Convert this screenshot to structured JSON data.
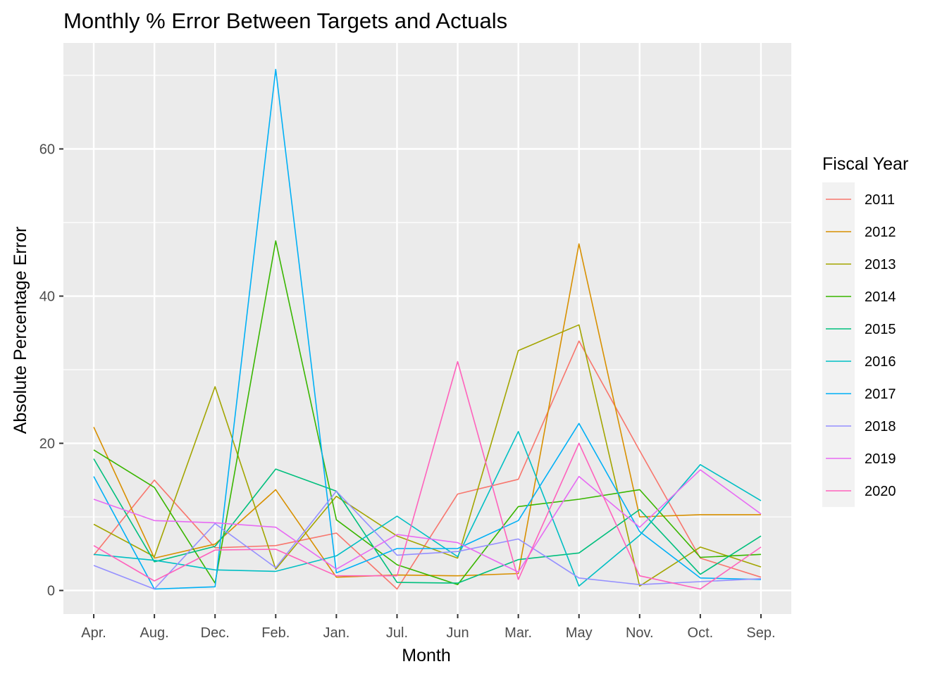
{
  "chart_data": {
    "type": "line",
    "title": "Monthly % Error Between Targets and Actuals",
    "xlabel": "Month",
    "ylabel": "Absolute Percentage Error",
    "ylim": [
      -3.2,
      74.4
    ],
    "yticks": [
      0,
      20,
      40,
      60
    ],
    "grid": true,
    "legend_title": "Fiscal Year",
    "legend_position": "right",
    "categories": [
      "Apr.",
      "Aug.",
      "Dec.",
      "Feb.",
      "Jan.",
      "Jul.",
      "Jun",
      "Mar.",
      "May",
      "Nov.",
      "Oct.",
      "Sep."
    ],
    "series": [
      {
        "name": "2011",
        "color": "#F8766D",
        "values": [
          4.8,
          15.0,
          5.8,
          6.1,
          7.8,
          0.2,
          13.1,
          15.1,
          33.9,
          19.0,
          4.4,
          1.8
        ]
      },
      {
        "name": "2012",
        "color": "#D89000",
        "values": [
          22.2,
          4.4,
          6.3,
          13.7,
          1.8,
          2.1,
          2.0,
          2.3,
          47.1,
          10.0,
          10.3,
          10.3
        ]
      },
      {
        "name": "2013",
        "color": "#A3A500",
        "values": [
          9.0,
          4.6,
          27.7,
          2.9,
          12.8,
          7.4,
          4.4,
          32.6,
          36.1,
          0.6,
          5.9,
          3.2
        ]
      },
      {
        "name": "2014",
        "color": "#39B600",
        "values": [
          19.1,
          14.0,
          1.0,
          47.5,
          9.6,
          3.5,
          0.8,
          11.4,
          12.4,
          13.7,
          4.5,
          4.9
        ]
      },
      {
        "name": "2015",
        "color": "#00BF7D",
        "values": [
          17.9,
          3.9,
          6.0,
          16.5,
          13.5,
          1.1,
          1.0,
          4.2,
          5.1,
          11.0,
          2.2,
          7.4
        ]
      },
      {
        "name": "2016",
        "color": "#00BFC4",
        "values": [
          4.9,
          4.1,
          2.8,
          2.6,
          4.7,
          10.1,
          4.6,
          21.6,
          0.6,
          7.5,
          17.1,
          12.2
        ]
      },
      {
        "name": "2017",
        "color": "#00B0F6",
        "values": [
          15.5,
          0.2,
          0.5,
          70.8,
          2.4,
          5.7,
          5.7,
          9.5,
          22.7,
          8.0,
          1.7,
          1.5
        ]
      },
      {
        "name": "2018",
        "color": "#9590FF",
        "values": [
          3.4,
          0.2,
          9.1,
          3.1,
          13.5,
          4.8,
          5.3,
          7.0,
          1.7,
          0.8,
          1.2,
          1.6
        ]
      },
      {
        "name": "2019",
        "color": "#E76BF3",
        "values": [
          12.4,
          9.5,
          9.2,
          8.6,
          2.9,
          7.6,
          6.5,
          2.5,
          15.5,
          8.6,
          16.4,
          10.4
        ]
      },
      {
        "name": "2020",
        "color": "#FF62BC",
        "values": [
          6.1,
          1.3,
          5.5,
          5.6,
          2.0,
          2.0,
          31.1,
          1.5,
          20.0,
          2.0,
          0.2,
          5.9
        ]
      }
    ]
  }
}
